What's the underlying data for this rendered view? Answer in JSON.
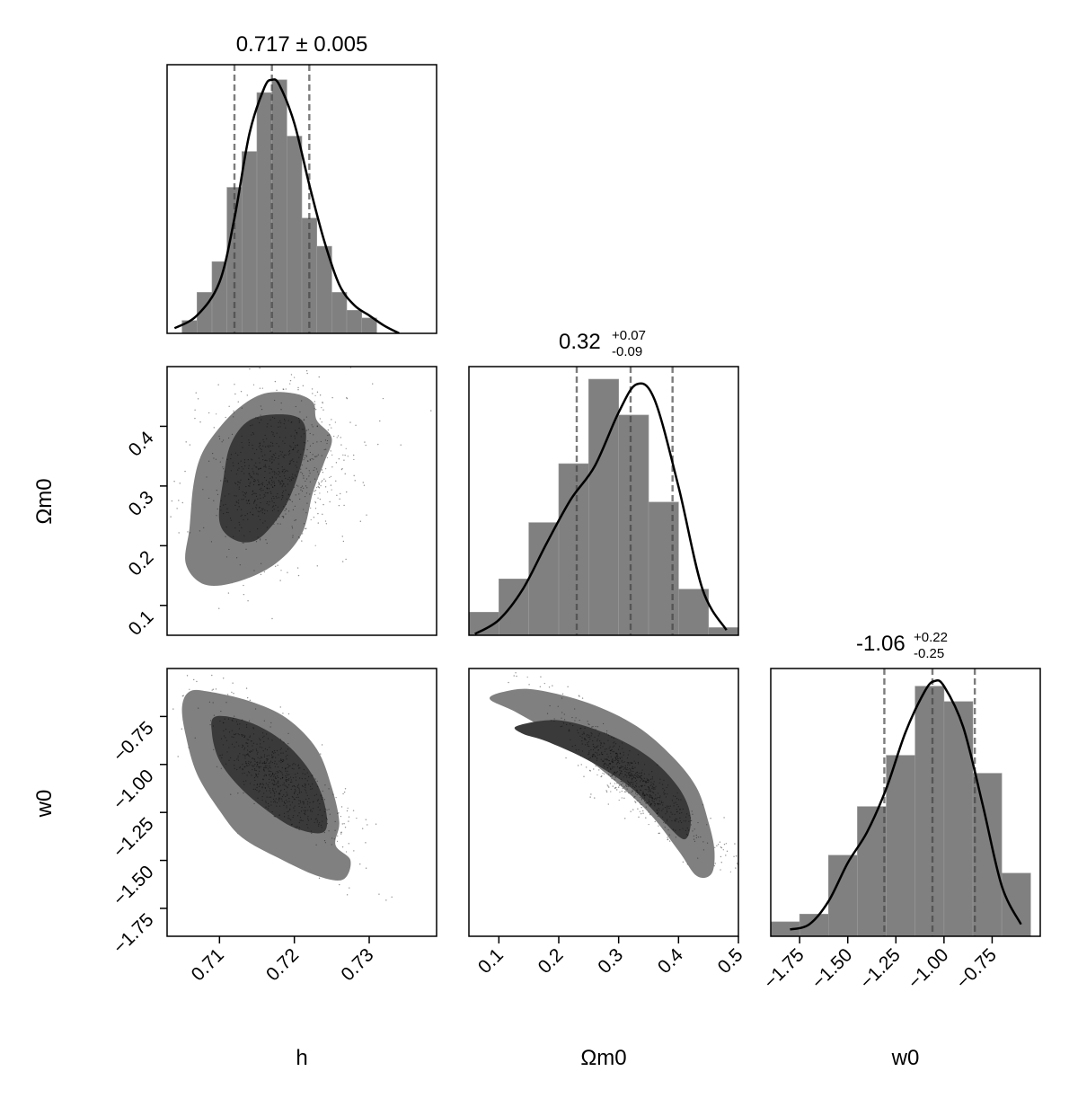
{
  "chart_data": {
    "type": "corner",
    "parameters": [
      "h",
      "Ωm0",
      "w0"
    ],
    "axis_labels": {
      "x": [
        "h",
        "Ωm0",
        "w0"
      ],
      "y": [
        "Ωm0",
        "w0"
      ]
    },
    "summaries": [
      {
        "param": "h",
        "text": "0.717 ± 0.005",
        "median": 0.717,
        "lower": 0.712,
        "upper": 0.722
      },
      {
        "param": "Ωm0",
        "main": "0.32",
        "plus": "+0.07",
        "minus": "-0.09",
        "median": 0.32,
        "lower": 0.23,
        "upper": 0.39
      },
      {
        "param": "w0",
        "main": "-1.06",
        "plus": "+0.22",
        "minus": "-0.25",
        "median": -1.06,
        "lower": -1.31,
        "upper": -0.84
      }
    ],
    "ranges": {
      "h": [
        0.703,
        0.739
      ],
      "Ωm0": [
        0.05,
        0.5
      ],
      "w0": [
        -1.9,
        -0.5
      ]
    },
    "ticks": {
      "h": [
        "0.71",
        "0.72",
        "0.73"
      ],
      "Ωm0_x": [
        "0.1",
        "0.2",
        "0.3",
        "0.4",
        "0.5"
      ],
      "Ωm0_y": [
        "0.1",
        "0.2",
        "0.3",
        "0.4"
      ],
      "w0": [
        "−1.75",
        "−1.50",
        "−1.25",
        "−1.00",
        "−0.75"
      ]
    },
    "tick_values": {
      "h": [
        0.71,
        0.72,
        0.73
      ],
      "Ωm0_x": [
        0.1,
        0.2,
        0.3,
        0.4,
        0.5
      ],
      "Ωm0_y": [
        0.1,
        0.2,
        0.3,
        0.4
      ],
      "w0": [
        -1.75,
        -1.5,
        -1.25,
        -1.0,
        -0.75
      ]
    },
    "histograms": [
      {
        "param": "h",
        "bin_edges": [
          0.705,
          0.707,
          0.709,
          0.711,
          0.713,
          0.715,
          0.717,
          0.719,
          0.721,
          0.723,
          0.725,
          0.727,
          0.729,
          0.731,
          0.733
        ],
        "counts": [
          0.05,
          0.16,
          0.28,
          0.57,
          0.71,
          0.94,
          0.99,
          0.77,
          0.45,
          0.34,
          0.16,
          0.09,
          0.06,
          0.0
        ]
      },
      {
        "param": "Ωm0",
        "bin_edges": [
          0.05,
          0.1,
          0.15,
          0.2,
          0.25,
          0.3,
          0.35,
          0.4,
          0.45,
          0.5
        ],
        "counts": [
          0.09,
          0.22,
          0.44,
          0.67,
          1.0,
          0.86,
          0.52,
          0.18,
          0.03
        ]
      },
      {
        "param": "w0",
        "bin_edges": [
          -1.9,
          -1.75,
          -1.6,
          -1.45,
          -1.3,
          -1.15,
          -1.0,
          -0.85,
          -0.7,
          -0.55
        ],
        "counts": [
          0.06,
          0.09,
          0.32,
          0.51,
          0.71,
          0.98,
          0.92,
          0.64,
          0.25
        ]
      }
    ],
    "kde": [
      {
        "param": "h",
        "x": [
          0.704,
          0.707,
          0.71,
          0.712,
          0.714,
          0.716,
          0.717,
          0.718,
          0.72,
          0.722,
          0.724,
          0.726,
          0.728,
          0.73,
          0.732,
          0.734
        ],
        "y": [
          0.02,
          0.07,
          0.2,
          0.45,
          0.78,
          0.96,
          0.99,
          0.97,
          0.82,
          0.58,
          0.36,
          0.19,
          0.11,
          0.07,
          0.03,
          0.0
        ]
      },
      {
        "param": "Ωm0",
        "x": [
          0.06,
          0.1,
          0.14,
          0.18,
          0.22,
          0.26,
          0.3,
          0.33,
          0.36,
          0.4,
          0.44,
          0.48
        ],
        "y": [
          0.005,
          0.06,
          0.18,
          0.36,
          0.53,
          0.66,
          0.87,
          0.98,
          0.92,
          0.58,
          0.18,
          0.02
        ]
      },
      {
        "param": "w0",
        "x": [
          -1.8,
          -1.7,
          -1.6,
          -1.5,
          -1.4,
          -1.3,
          -1.2,
          -1.1,
          -1.05,
          -1.0,
          -0.9,
          -0.8,
          -0.7,
          -0.6
        ],
        "y": [
          0.03,
          0.05,
          0.14,
          0.29,
          0.41,
          0.58,
          0.8,
          0.96,
          1.0,
          0.98,
          0.82,
          0.52,
          0.2,
          0.05
        ]
      }
    ],
    "contours": [
      {
        "x_param": "h",
        "y_param": "Ωm0",
        "outer": [
          [
            0.7055,
            0.17
          ],
          [
            0.706,
            0.23
          ],
          [
            0.7065,
            0.3
          ],
          [
            0.7075,
            0.35
          ],
          [
            0.7095,
            0.39
          ],
          [
            0.7125,
            0.43
          ],
          [
            0.716,
            0.455
          ],
          [
            0.72,
            0.455
          ],
          [
            0.7225,
            0.44
          ],
          [
            0.723,
            0.41
          ],
          [
            0.725,
            0.38
          ],
          [
            0.724,
            0.34
          ],
          [
            0.7225,
            0.29
          ],
          [
            0.721,
            0.22
          ],
          [
            0.7175,
            0.17
          ],
          [
            0.7125,
            0.14
          ],
          [
            0.708,
            0.135
          ]
        ],
        "inner": [
          [
            0.71,
            0.24
          ],
          [
            0.7105,
            0.31
          ],
          [
            0.7115,
            0.37
          ],
          [
            0.714,
            0.41
          ],
          [
            0.718,
            0.42
          ],
          [
            0.721,
            0.41
          ],
          [
            0.7215,
            0.37
          ],
          [
            0.72,
            0.3
          ],
          [
            0.718,
            0.25
          ],
          [
            0.715,
            0.21
          ],
          [
            0.712,
            0.21
          ]
        ]
      },
      {
        "x_param": "h",
        "y_param": "w0",
        "outer": [
          [
            0.706,
            -0.62
          ],
          [
            0.7085,
            -0.62
          ],
          [
            0.714,
            -0.67
          ],
          [
            0.719,
            -0.76
          ],
          [
            0.723,
            -0.92
          ],
          [
            0.725,
            -1.12
          ],
          [
            0.726,
            -1.3
          ],
          [
            0.7255,
            -1.42
          ],
          [
            0.7275,
            -1.5
          ],
          [
            0.7265,
            -1.6
          ],
          [
            0.723,
            -1.58
          ],
          [
            0.718,
            -1.49
          ],
          [
            0.713,
            -1.38
          ],
          [
            0.71,
            -1.24
          ],
          [
            0.707,
            -1.05
          ],
          [
            0.7055,
            -0.85
          ],
          [
            0.705,
            -0.7
          ]
        ],
        "inner": [
          [
            0.7095,
            -0.75
          ],
          [
            0.714,
            -0.78
          ],
          [
            0.7185,
            -0.88
          ],
          [
            0.722,
            -1.03
          ],
          [
            0.724,
            -1.2
          ],
          [
            0.724,
            -1.35
          ],
          [
            0.72,
            -1.33
          ],
          [
            0.716,
            -1.23
          ],
          [
            0.7125,
            -1.11
          ],
          [
            0.71,
            -0.98
          ],
          [
            0.709,
            -0.84
          ]
        ]
      },
      {
        "x_param": "Ωm0",
        "y_param": "w0",
        "outer": [
          [
            0.085,
            -0.66
          ],
          [
            0.11,
            -0.62
          ],
          [
            0.16,
            -0.61
          ],
          [
            0.25,
            -0.68
          ],
          [
            0.33,
            -0.8
          ],
          [
            0.39,
            -0.96
          ],
          [
            0.43,
            -1.12
          ],
          [
            0.45,
            -1.3
          ],
          [
            0.46,
            -1.45
          ],
          [
            0.455,
            -1.57
          ],
          [
            0.43,
            -1.58
          ],
          [
            0.4,
            -1.45
          ],
          [
            0.35,
            -1.25
          ],
          [
            0.28,
            -1.05
          ],
          [
            0.2,
            -0.86
          ],
          [
            0.13,
            -0.73
          ]
        ],
        "inner": [
          [
            0.13,
            -0.8
          ],
          [
            0.2,
            -0.77
          ],
          [
            0.28,
            -0.84
          ],
          [
            0.35,
            -0.96
          ],
          [
            0.4,
            -1.12
          ],
          [
            0.42,
            -1.27
          ],
          [
            0.41,
            -1.39
          ],
          [
            0.37,
            -1.28
          ],
          [
            0.32,
            -1.12
          ],
          [
            0.25,
            -0.98
          ],
          [
            0.18,
            -0.88
          ],
          [
            0.14,
            -0.84
          ]
        ]
      }
    ]
  }
}
